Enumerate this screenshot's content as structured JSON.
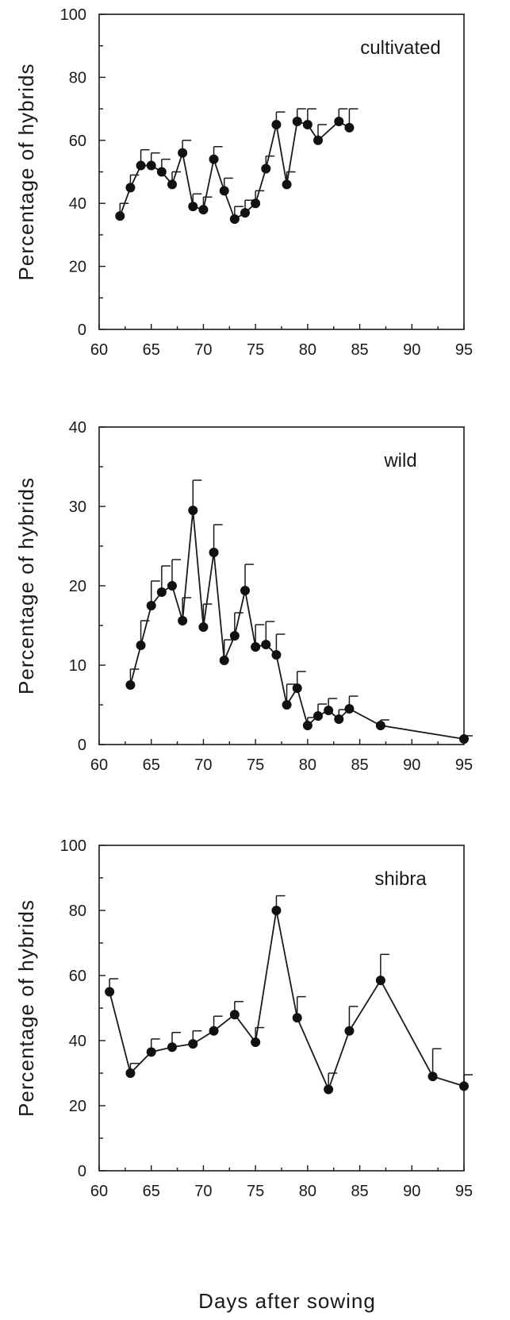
{
  "figure": {
    "shared_xlabel": "Days after sowing"
  },
  "chart_data": [
    {
      "type": "line",
      "panel_label": "cultivated",
      "ylabel": "Percentage of hybrids",
      "xlim": [
        60,
        95
      ],
      "ylim": [
        0,
        100
      ],
      "xticks": [
        60,
        65,
        70,
        75,
        80,
        85,
        90,
        95
      ],
      "yticks": [
        0,
        20,
        40,
        60,
        80,
        100
      ],
      "grid": false,
      "x": [
        62,
        63,
        64,
        65,
        66,
        67,
        68,
        69,
        70,
        71,
        72,
        73,
        74,
        75,
        76,
        77,
        78,
        79,
        80,
        81,
        83,
        84
      ],
      "y": [
        36,
        45,
        52,
        52,
        50,
        46,
        56,
        39,
        38,
        54,
        44,
        35,
        37,
        40,
        51,
        65,
        46,
        66,
        65,
        60,
        66,
        64
      ],
      "y_upper": [
        40,
        49,
        57,
        56,
        54,
        50,
        60,
        43,
        42,
        58,
        48,
        39,
        41,
        44,
        55,
        69,
        50,
        70,
        70,
        65,
        70,
        70
      ]
    },
    {
      "type": "line",
      "panel_label": "wild",
      "ylabel": "Percentage of hybrids",
      "xlim": [
        60,
        95
      ],
      "ylim": [
        0,
        40
      ],
      "xticks": [
        60,
        65,
        70,
        75,
        80,
        85,
        90,
        95
      ],
      "yticks": [
        0,
        10,
        20,
        30,
        40
      ],
      "grid": false,
      "x": [
        63,
        64,
        65,
        66,
        67,
        68,
        69,
        70,
        71,
        72,
        73,
        74,
        75,
        76,
        77,
        78,
        79,
        80,
        81,
        82,
        83,
        84,
        87,
        95
      ],
      "y": [
        7.5,
        12.5,
        17.5,
        19.2,
        20,
        15.6,
        29.5,
        14.8,
        24.2,
        10.6,
        13.7,
        19.4,
        12.3,
        12.6,
        11.3,
        5,
        7.1,
        2.4,
        3.6,
        4.3,
        3.2,
        4.5,
        2.4,
        0.7
      ],
      "y_upper": [
        9.5,
        15.6,
        20.6,
        22.5,
        23.3,
        18.5,
        33.3,
        17.7,
        27.7,
        13.2,
        16.6,
        22.7,
        15.1,
        15.5,
        13.9,
        7.6,
        9.2,
        3.4,
        5.1,
        5.8,
        4.4,
        6.1,
        3.1,
        1.1
      ]
    },
    {
      "type": "line",
      "panel_label": "shibra",
      "ylabel": "Percentage of hybrids",
      "xlabel": "Days after sowing",
      "xlim": [
        60,
        95
      ],
      "ylim": [
        0,
        100
      ],
      "xticks": [
        60,
        65,
        70,
        75,
        80,
        85,
        90,
        95
      ],
      "yticks": [
        0,
        20,
        40,
        60,
        80,
        100
      ],
      "grid": false,
      "x": [
        61,
        63,
        65,
        67,
        69,
        71,
        73,
        75,
        77,
        79,
        82,
        84,
        87,
        92,
        95
      ],
      "y": [
        55,
        30,
        36.5,
        38,
        39,
        43,
        48,
        39.5,
        80,
        47,
        25,
        43,
        58.5,
        29,
        26
      ],
      "y_upper": [
        59,
        33,
        40.5,
        42.5,
        43,
        47.5,
        52,
        44,
        84.5,
        53.5,
        30,
        50.5,
        66.5,
        37.5,
        29.5
      ]
    }
  ]
}
